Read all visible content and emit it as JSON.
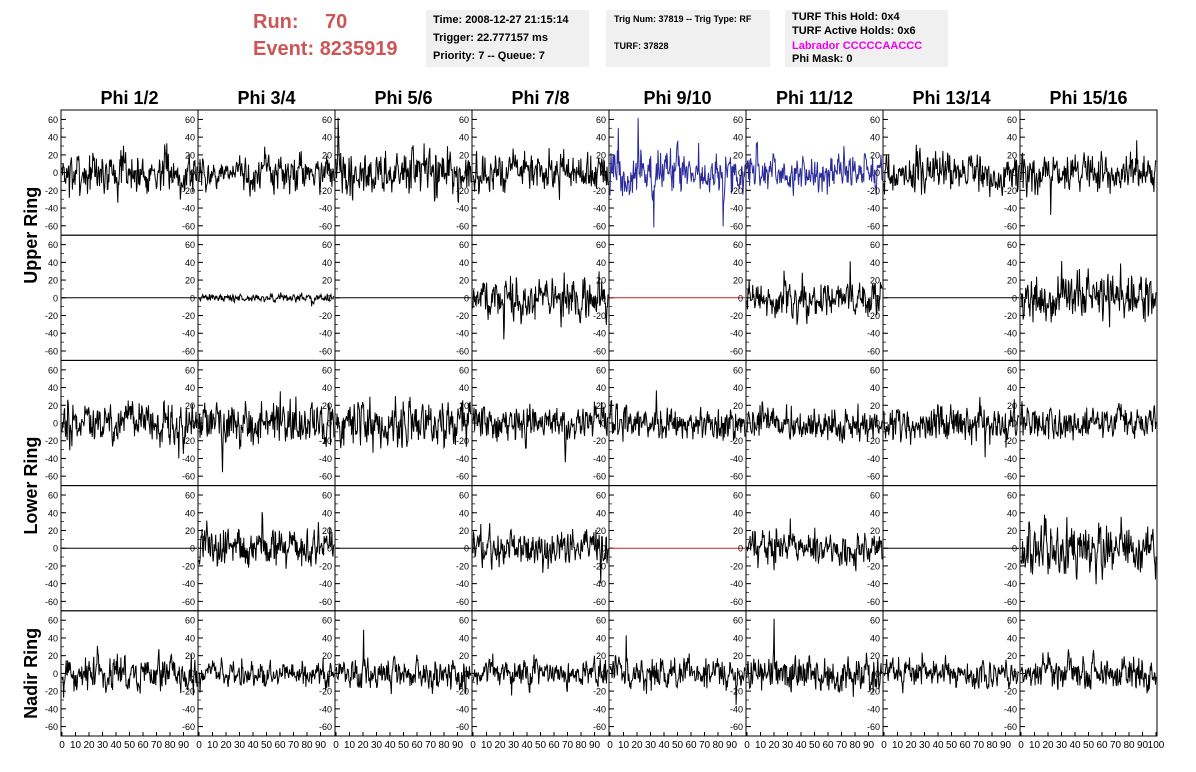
{
  "header": {
    "run_label": "Run:",
    "run_value": "70",
    "event_label": "Event:",
    "event_value": "8235919",
    "time": "Time: 2008-12-27 21:15:14",
    "trigger": "Trigger: 22.777157 ms",
    "priority": "Priority: 7 -- Queue: 7",
    "trig_num": "Trig Num: 37819 -- Trig Type: RF",
    "turf": "TURF: 37828",
    "turf_this_hold": "TURF This Hold: 0x4",
    "turf_active_holds": "TURF Active Holds: 0x6",
    "labrador": "Labrador CCCCCAACCC",
    "phi_mask": "Phi Mask: 0"
  },
  "colors": {
    "header_red": "#cc5555",
    "labrador_magenta": "#ee00ee",
    "trace_black": "#000000",
    "trace_blue": "#2a2a9a",
    "trace_red": "#cc2222",
    "box_bg": "#f0f0f0"
  },
  "chart_data": {
    "type": "line",
    "columns": [
      "Phi 1/2",
      "Phi 3/4",
      "Phi 5/6",
      "Phi 7/8",
      "Phi 9/10",
      "Phi 11/12",
      "Phi 13/14",
      "Phi 15/16"
    ],
    "rows": [
      "Upper Ring",
      "Lower Ring",
      "Nadir Ring"
    ],
    "ylim": [
      -65,
      65
    ],
    "yticks": [
      -60,
      -40,
      -20,
      0,
      20,
      40,
      60
    ],
    "xlim": [
      0,
      100
    ],
    "xticks": [
      0,
      10,
      20,
      30,
      40,
      50,
      60,
      70,
      80,
      90,
      100
    ],
    "samples_per_trace": 260,
    "panels": [
      [
        {
          "amp": 11,
          "color": "black"
        },
        {
          "amp": 9,
          "color": "black"
        },
        {
          "amp": 12,
          "color": "black"
        },
        {
          "amp": 10,
          "color": "black"
        },
        {
          "amp": 13,
          "color": "blue"
        },
        {
          "amp": 10,
          "color": "blue"
        },
        {
          "amp": 10,
          "color": "black"
        },
        {
          "amp": 10,
          "color": "black"
        }
      ],
      [
        {
          "amp": 0,
          "color": "black"
        },
        {
          "amp": 2,
          "color": "black"
        },
        {
          "amp": 0,
          "color": "black"
        },
        {
          "amp": 11,
          "color": "black"
        },
        {
          "amp": 0,
          "color": "red"
        },
        {
          "amp": 9,
          "color": "black"
        },
        {
          "amp": 0,
          "color": "black"
        },
        {
          "amp": 12,
          "color": "black"
        }
      ],
      [
        {
          "amp": 11,
          "color": "black"
        },
        {
          "amp": 11,
          "color": "black"
        },
        {
          "amp": 12,
          "color": "black"
        },
        {
          "amp": 10,
          "color": "black"
        },
        {
          "amp": 9,
          "color": "black"
        },
        {
          "amp": 9,
          "color": "black"
        },
        {
          "amp": 10,
          "color": "black"
        },
        {
          "amp": 9,
          "color": "black"
        }
      ],
      [
        {
          "amp": 0,
          "color": "black"
        },
        {
          "amp": 10,
          "color": "black"
        },
        {
          "amp": 0,
          "color": "black"
        },
        {
          "amp": 10,
          "color": "black"
        },
        {
          "amp": 0,
          "color": "red"
        },
        {
          "amp": 9,
          "color": "black"
        },
        {
          "amp": 0,
          "color": "black"
        },
        {
          "amp": 13,
          "color": "black"
        }
      ],
      [
        {
          "amp": 9,
          "color": "black"
        },
        {
          "amp": 7,
          "color": "black"
        },
        {
          "amp": 8,
          "color": "black"
        },
        {
          "amp": 7,
          "color": "black"
        },
        {
          "amp": 8,
          "color": "black"
        },
        {
          "amp": 9,
          "color": "black"
        },
        {
          "amp": 7,
          "color": "black"
        },
        {
          "amp": 9,
          "color": "black"
        }
      ]
    ]
  }
}
